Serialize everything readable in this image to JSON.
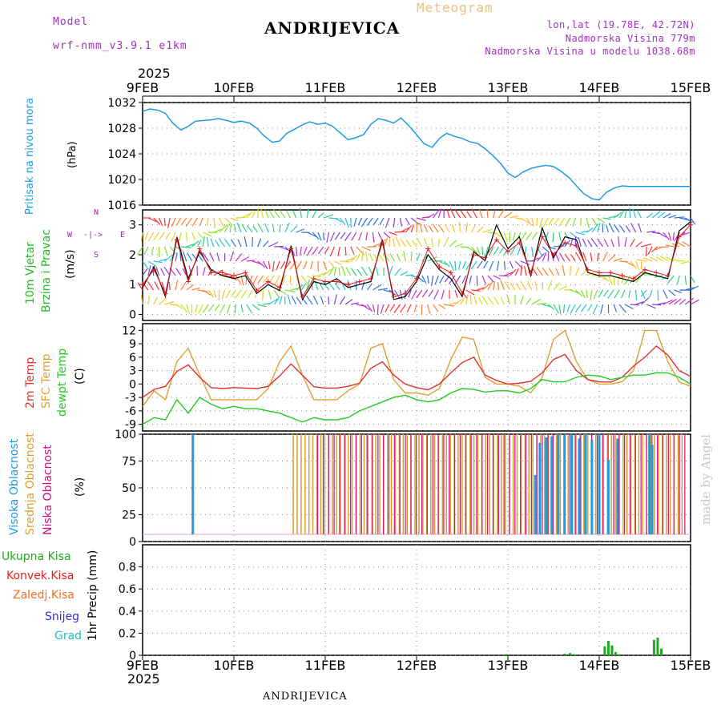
{
  "header": {
    "model_label": "Model",
    "model_name": "wrf-nmm_v3.9.1  e1km",
    "product": "Meteogram",
    "title": "ANDRIJEVICA",
    "lonlat": "lon,lat (19.78E, 42.72N)",
    "elevation": "Nadmorska Visina 779m",
    "model_elevation": "Nadmorska Visina u modelu 1038.68m",
    "year_top": "2025",
    "year_bottom": "2025",
    "footer_title": "ANDRIJEVICA",
    "watermark": "made by Angel"
  },
  "colors": {
    "pressure": "#1e9be0",
    "wind_label": "#22bb22",
    "wind_obs": "#e02020",
    "wind_model": "#000000",
    "temp2m": "#e03030",
    "sfc_temp": "#e0a030",
    "dewpoint": "#22cc22",
    "high_cloud": "#1e9be0",
    "mid_cloud": "#d8a030",
    "low_cloud": "#d0107a",
    "total_precip": "#22aa22",
    "conv_precip": "#e02020",
    "frozen_precip": "#f07020",
    "snow": "#3030d0",
    "hail": "#20c0c0",
    "dir_label": "#a020c0"
  },
  "chart_data": [
    {
      "type": "line",
      "panel": "pressure",
      "ylabel_left": "Pritisak na nivou mora",
      "ylabel_unit": "(hPa)",
      "ylim": [
        1016,
        1032
      ],
      "yticks": [
        1016,
        1020,
        1024,
        1028,
        1032
      ],
      "x_days": [
        0,
        0.08,
        0.17,
        0.25,
        0.33,
        0.42,
        0.5,
        0.58,
        0.67,
        0.75,
        0.83,
        0.92,
        1.0,
        1.08,
        1.17,
        1.25,
        1.33,
        1.42,
        1.5,
        1.58,
        1.67,
        1.75,
        1.83,
        1.92,
        2.0,
        2.08,
        2.17,
        2.25,
        2.33,
        2.42,
        2.5,
        2.58,
        2.67,
        2.75,
        2.83,
        2.92,
        3.0,
        3.08,
        3.17,
        3.25,
        3.33,
        3.42,
        3.5,
        3.58,
        3.67,
        3.75,
        3.83,
        3.92,
        4.0,
        4.08,
        4.17,
        4.25,
        4.33,
        4.42,
        4.5,
        4.58,
        4.67,
        4.75,
        4.83,
        4.92,
        5.0,
        5.08,
        5.17,
        5.25,
        5.33,
        5.42,
        5.5,
        5.58,
        5.67,
        5.75,
        5.83,
        5.92,
        6.0
      ],
      "series": [
        {
          "values": [
            1030.6,
            1031.0,
            1030.8,
            1030.3,
            1028.8,
            1027.7,
            1028.3,
            1029.1,
            1029.2,
            1029.3,
            1029.5,
            1029.2,
            1028.9,
            1029.1,
            1028.8,
            1028.0,
            1026.8,
            1025.8,
            1026.0,
            1027.2,
            1027.9,
            1028.5,
            1029.0,
            1028.6,
            1028.8,
            1028.3,
            1027.2,
            1026.2,
            1026.5,
            1027.0,
            1028.6,
            1029.5,
            1029.2,
            1028.8,
            1029.6,
            1028.3,
            1027.0,
            1025.6,
            1025.0,
            1026.4,
            1027.2,
            1026.7,
            1026.4,
            1025.9,
            1025.6,
            1024.8,
            1023.8,
            1022.5,
            1021.0,
            1020.3,
            1021.2,
            1021.7,
            1022.0,
            1022.2,
            1022.0,
            1021.3,
            1020.3,
            1019.0,
            1017.8,
            1017.0,
            1016.8,
            1018.0,
            1018.7,
            1019.0,
            1018.9,
            1018.9,
            1018.9,
            1018.9,
            1018.9,
            1018.9,
            1018.9,
            1018.9,
            1018.9
          ]
        }
      ]
    },
    {
      "type": "line",
      "panel": "wind",
      "ylabel_left_1": "10m Vjetar",
      "ylabel_left_2": "Brzina i Pravac",
      "ylabel_unit": "(m/s)",
      "compass": {
        "n": "N",
        "s": "S",
        "e": "E",
        "w": "W"
      },
      "ylim": [
        -0.2,
        3.5
      ],
      "yticks": [
        0,
        1,
        2,
        3
      ],
      "x_days": [
        0,
        0.125,
        0.25,
        0.375,
        0.5,
        0.625,
        0.75,
        0.875,
        1.0,
        1.125,
        1.25,
        1.375,
        1.5,
        1.625,
        1.75,
        1.875,
        2.0,
        2.125,
        2.25,
        2.375,
        2.5,
        2.625,
        2.75,
        2.875,
        3.0,
        3.125,
        3.25,
        3.375,
        3.5,
        3.625,
        3.75,
        3.875,
        4.0,
        4.125,
        4.25,
        4.375,
        4.5,
        4.625,
        4.75,
        4.875,
        5.0,
        5.125,
        5.25,
        5.375,
        5.5,
        5.625,
        5.75,
        5.875,
        6.0
      ],
      "series": [
        {
          "name": "model",
          "values": [
            0.9,
            1.6,
            0.6,
            2.6,
            1.2,
            2.1,
            1.5,
            1.3,
            1.2,
            1.3,
            0.7,
            1.0,
            0.8,
            2.3,
            0.5,
            1.1,
            1.0,
            1.2,
            0.9,
            1.0,
            1.1,
            2.5,
            0.5,
            0.6,
            1.1,
            2.0,
            1.5,
            1.2,
            0.6,
            2.1,
            1.8,
            3.0,
            2.2,
            2.6,
            1.3,
            2.9,
            1.9,
            2.6,
            2.5,
            1.4,
            1.3,
            1.3,
            1.2,
            1.1,
            1.4,
            1.3,
            1.2,
            2.8,
            3.1
          ]
        },
        {
          "name": "obs",
          "values": [
            1.0,
            1.5,
            0.7,
            2.5,
            1.1,
            2.2,
            1.4,
            1.4,
            1.3,
            1.4,
            0.8,
            1.1,
            0.9,
            2.2,
            0.6,
            1.2,
            1.1,
            1.1,
            1.0,
            1.1,
            1.2,
            2.4,
            0.6,
            0.7,
            1.2,
            2.2,
            1.6,
            1.4,
            0.7,
            2.0,
            1.9,
            2.5,
            2.1,
            2.4,
            1.4,
            2.6,
            2.0,
            2.4,
            2.3,
            1.5,
            1.4,
            1.4,
            1.3,
            1.2,
            1.5,
            1.4,
            1.3,
            2.6,
            3.0
          ]
        }
      ]
    },
    {
      "type": "line",
      "panel": "temperature",
      "ylabel_left_1": "2m Temp",
      "ylabel_left_2": "SFC Temp",
      "ylabel_left_3": "dewpt Temp",
      "ylabel_unit": "(C)",
      "ylim": [
        -10.5,
        13.5
      ],
      "yticks": [
        -9,
        -6,
        -3,
        0,
        3,
        6,
        9,
        12
      ],
      "x_days": [
        0,
        0.125,
        0.25,
        0.375,
        0.5,
        0.625,
        0.75,
        0.875,
        1.0,
        1.125,
        1.25,
        1.375,
        1.5,
        1.625,
        1.75,
        1.875,
        2.0,
        2.125,
        2.25,
        2.375,
        2.5,
        2.625,
        2.75,
        2.875,
        3.0,
        3.125,
        3.25,
        3.375,
        3.5,
        3.625,
        3.75,
        3.875,
        4.0,
        4.125,
        4.25,
        4.375,
        4.5,
        4.625,
        4.75,
        4.875,
        5.0,
        5.125,
        5.25,
        5.375,
        5.5,
        5.625,
        5.75,
        5.875,
        6.0
      ],
      "series": [
        {
          "name": "2m Temp",
          "values": [
            -3.0,
            -1.2,
            -0.5,
            2.8,
            4.3,
            1.5,
            -0.8,
            -1.0,
            -0.8,
            -0.9,
            -1.0,
            -0.5,
            1.8,
            4.5,
            2.0,
            -0.6,
            -0.9,
            -0.9,
            -0.5,
            0.2,
            3.5,
            5.0,
            2.0,
            0.0,
            -0.8,
            -1.3,
            0.0,
            2.5,
            4.8,
            6.0,
            2.0,
            0.8,
            0.0,
            0.2,
            0.6,
            2.5,
            5.5,
            6.6,
            3.0,
            1.0,
            0.5,
            0.4,
            1.5,
            4.0,
            6.0,
            8.5,
            6.5,
            3.0,
            1.7
          ]
        },
        {
          "name": "SFC Temp",
          "values": [
            -5.0,
            -1.5,
            -3.5,
            5.0,
            8.0,
            2.0,
            -3.5,
            -3.5,
            -3.5,
            -3.5,
            -3.5,
            -1.0,
            5.0,
            8.5,
            2.0,
            -3.5,
            -3.5,
            -3.5,
            -1.5,
            0.0,
            8.0,
            9.0,
            1.0,
            -2.0,
            -2.0,
            -2.5,
            -1.0,
            5.5,
            10.5,
            10.0,
            1.5,
            0.0,
            0.0,
            -0.5,
            -2.0,
            1.5,
            10.0,
            12.0,
            5.0,
            1.0,
            0.0,
            0.0,
            0.5,
            3.0,
            12.0,
            12.0,
            5.0,
            0.5,
            -0.5
          ]
        },
        {
          "name": "dewpt Temp",
          "values": [
            -9.0,
            -7.5,
            -8.0,
            -3.5,
            -6.5,
            -3.0,
            -4.5,
            -5.5,
            -5.0,
            -5.5,
            -5.5,
            -6.0,
            -6.5,
            -7.5,
            -8.5,
            -7.5,
            -8.0,
            -8.0,
            -7.5,
            -6.0,
            -5.0,
            -4.0,
            -3.0,
            -2.5,
            -3.5,
            -4.0,
            -3.5,
            -2.0,
            -1.0,
            -1.2,
            -1.8,
            -1.5,
            -1.5,
            -2.0,
            -1.0,
            1.0,
            0.5,
            0.5,
            1.5,
            2.0,
            1.8,
            1.0,
            1.5,
            2.0,
            2.0,
            2.5,
            2.5,
            1.5,
            0.0
          ]
        }
      ]
    },
    {
      "type": "bar",
      "panel": "clouds",
      "ylabel_left_1": "Visoka Oblacnost",
      "ylabel_left_2": "Srednja Oblacnost",
      "ylabel_left_3": "Niska Oblacnost",
      "ylabel_unit": "(%)",
      "ylim": [
        0,
        100
      ],
      "yticks": [
        0,
        25,
        50,
        75,
        100
      ],
      "high_cloud_bars": [
        {
          "x": 0.55,
          "v": 100
        },
        {
          "x": 4.3,
          "v": 62
        },
        {
          "x": 4.35,
          "v": 92
        },
        {
          "x": 4.42,
          "v": 97
        },
        {
          "x": 4.48,
          "v": 98
        },
        {
          "x": 4.55,
          "v": 100
        },
        {
          "x": 4.62,
          "v": 100
        },
        {
          "x": 4.7,
          "v": 100
        },
        {
          "x": 4.78,
          "v": 96
        },
        {
          "x": 4.85,
          "v": 100
        },
        {
          "x": 4.92,
          "v": 95
        },
        {
          "x": 5.0,
          "v": 100
        },
        {
          "x": 5.1,
          "v": 76
        },
        {
          "x": 5.2,
          "v": 96
        },
        {
          "x": 5.55,
          "v": 100
        },
        {
          "x": 5.58,
          "v": 90
        }
      ],
      "mid_cloud_range": {
        "start": 1.65,
        "end": 5.95,
        "step": 0.043,
        "value": 100
      },
      "low_cloud_range": {
        "start": 1.9,
        "end": 5.95,
        "step": 0.06,
        "value": 100
      }
    },
    {
      "type": "bar",
      "panel": "precipitation",
      "legend": [
        "Ukupna  Kisa",
        "Konvek.Kisa",
        "Zaledj.Kisa",
        "Snijeg",
        "Grad"
      ],
      "ylabel_unit": "1hr Precip (mm)",
      "ylim": [
        0,
        1.0
      ],
      "yticks": [
        0,
        0.2,
        0.4,
        0.6,
        0.8
      ],
      "total_rain_bars": [
        {
          "x": 3.98,
          "v": 0.01
        },
        {
          "x": 4.62,
          "v": 0.015
        },
        {
          "x": 4.68,
          "v": 0.02
        },
        {
          "x": 4.72,
          "v": 0.01
        },
        {
          "x": 5.06,
          "v": 0.08
        },
        {
          "x": 5.1,
          "v": 0.13
        },
        {
          "x": 5.14,
          "v": 0.09
        },
        {
          "x": 5.18,
          "v": 0.03
        },
        {
          "x": 5.22,
          "v": 0.01
        },
        {
          "x": 5.6,
          "v": 0.14
        },
        {
          "x": 5.64,
          "v": 0.16
        },
        {
          "x": 5.68,
          "v": 0.06
        }
      ]
    }
  ],
  "x_axis": {
    "labels": [
      "9FEB",
      "10FEB",
      "11FEB",
      "12FEB",
      "13FEB",
      "14FEB",
      "15FEB"
    ]
  }
}
